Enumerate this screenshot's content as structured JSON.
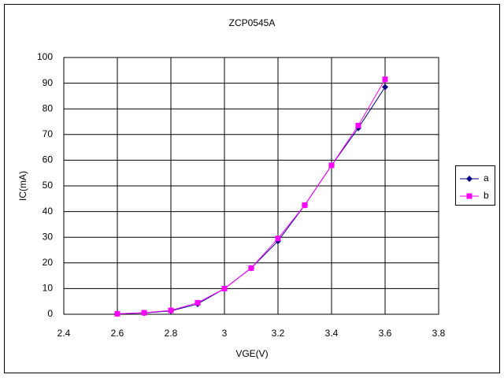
{
  "chart_data": {
    "type": "line",
    "title": "ZCP0545A",
    "x_label": "VGE(V)",
    "y_label": "IC(mA)",
    "x": [
      2.6,
      2.7,
      2.8,
      2.9,
      3.0,
      3.1,
      3.2,
      3.3,
      3.4,
      3.5,
      3.6
    ],
    "series": [
      {
        "name": "a",
        "color": "#000080",
        "marker": "diamond",
        "values": [
          0.2,
          0.5,
          1.3,
          4,
          10,
          18,
          28.5,
          42.5,
          58,
          72.5,
          88.5
        ]
      },
      {
        "name": "b",
        "color": "#ff00ff",
        "marker": "square",
        "values": [
          0.2,
          0.6,
          1.5,
          4.5,
          10,
          18,
          29.5,
          42.5,
          58,
          73.5,
          91.5
        ]
      }
    ],
    "xlim": [
      2.4,
      3.8
    ],
    "xticks": [
      2.4,
      2.6,
      2.8,
      3,
      3.2,
      3.4,
      3.6,
      3.8
    ],
    "ylim": [
      0,
      100
    ],
    "yticks": [
      0,
      10,
      20,
      30,
      40,
      50,
      60,
      70,
      80,
      90,
      100
    ],
    "grid": true,
    "legend": "right"
  }
}
